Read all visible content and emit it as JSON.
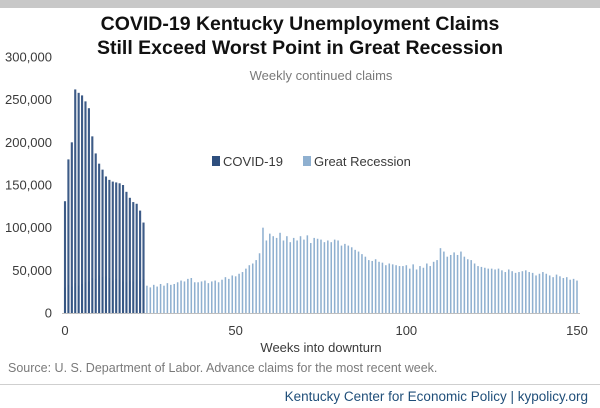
{
  "header": {
    "title_line1": "COVID-19 Kentucky Unemployment Claims",
    "title_line2": "Still Exceed Worst Point in Great Recession"
  },
  "source_note": "Source: U. S. Department of Labor. Advance claims for the most recent week.",
  "footer": {
    "credit": "Kentucky Center for Economic Policy | kypolicy.org"
  },
  "colors": {
    "covid": "#2e4f7e",
    "great_recession": "#8fb0d0",
    "axis": "#bfbfbf"
  },
  "chart_data": {
    "type": "bar",
    "title": "",
    "subtitle": "Weekly continued claims",
    "xlabel": "Weeks into downturn",
    "ylabel": "",
    "xlim": [
      0,
      150
    ],
    "ylim": [
      0,
      300000
    ],
    "x_ticks": [
      0,
      50,
      100,
      150
    ],
    "y_ticks": [
      0,
      50000,
      100000,
      150000,
      200000,
      250000,
      300000
    ],
    "y_tick_labels": [
      "0",
      "50,000",
      "100,000",
      "150,000",
      "200,000",
      "250,000",
      "300,000"
    ],
    "legend_position": "center",
    "series": [
      {
        "name": "COVID-19",
        "x": [
          0,
          1,
          2,
          3,
          4,
          5,
          6,
          7,
          8,
          9,
          10,
          11,
          12,
          13,
          14,
          15,
          16,
          17,
          18,
          19,
          20,
          21,
          22,
          23
        ],
        "values": [
          131000,
          180000,
          200000,
          262000,
          258000,
          255000,
          248000,
          240000,
          207000,
          187000,
          175000,
          168000,
          160000,
          156000,
          154000,
          153000,
          152000,
          150000,
          142000,
          135000,
          130000,
          128000,
          120000,
          106000
        ]
      },
      {
        "name": "Great Recession",
        "x": [
          0,
          1,
          2,
          3,
          4,
          5,
          6,
          7,
          8,
          9,
          10,
          11,
          12,
          13,
          14,
          15,
          16,
          17,
          18,
          19,
          20,
          21,
          22,
          23,
          24,
          25,
          26,
          27,
          28,
          29,
          30,
          31,
          32,
          33,
          34,
          35,
          36,
          37,
          38,
          39,
          40,
          41,
          42,
          43,
          44,
          45,
          46,
          47,
          48,
          49,
          50,
          51,
          52,
          53,
          54,
          55,
          56,
          57,
          58,
          59,
          60,
          61,
          62,
          63,
          64,
          65,
          66,
          67,
          68,
          69,
          70,
          71,
          72,
          73,
          74,
          75,
          76,
          77,
          78,
          79,
          80,
          81,
          82,
          83,
          84,
          85,
          86,
          87,
          88,
          89,
          90,
          91,
          92,
          93,
          94,
          95,
          96,
          97,
          98,
          99,
          100,
          101,
          102,
          103,
          104,
          105,
          106,
          107,
          108,
          109,
          110,
          111,
          112,
          113,
          114,
          115,
          116,
          117,
          118,
          119,
          120,
          121,
          122,
          123,
          124,
          125,
          126,
          127,
          128,
          129,
          130,
          131,
          132,
          133,
          134,
          135,
          136,
          137,
          138,
          139,
          140,
          141,
          142,
          143,
          144,
          145,
          146,
          147,
          148,
          149,
          150
        ],
        "values": [
          30000,
          33000,
          31000,
          35000,
          32000,
          34000,
          36000,
          37000,
          41000,
          40000,
          44000,
          42000,
          43000,
          41000,
          38000,
          40000,
          39000,
          37000,
          36000,
          38000,
          37000,
          39000,
          38000,
          40000,
          32000,
          30000,
          33000,
          31000,
          34000,
          32000,
          35000,
          33000,
          34000,
          36000,
          38000,
          37000,
          40000,
          41000,
          36000,
          36000,
          37000,
          38000,
          35000,
          37000,
          38000,
          36000,
          39000,
          42000,
          40000,
          44000,
          43000,
          46000,
          48000,
          52000,
          56000,
          58000,
          62000,
          70000,
          100000,
          85000,
          93000,
          90000,
          88000,
          94000,
          85000,
          90000,
          83000,
          88000,
          85000,
          90000,
          86000,
          91000,
          82000,
          88000,
          87000,
          86000,
          83000,
          85000,
          83000,
          86000,
          85000,
          79000,
          81000,
          79000,
          77000,
          74000,
          72000,
          69000,
          66000,
          62000,
          61000,
          63000,
          60000,
          59000,
          56000,
          58000,
          57000,
          56000,
          55000,
          55000,
          56000,
          52000,
          57000,
          51000,
          55000,
          53000,
          58000,
          55000,
          60000,
          62000,
          76000,
          72000,
          66000,
          68000,
          71000,
          68000,
          72000,
          66000,
          63000,
          62000,
          58000,
          55000,
          54000,
          53000,
          52000,
          52000,
          51000,
          52000,
          50000,
          48000,
          51000,
          49000,
          47000,
          48000,
          49000,
          50000,
          48000,
          47000,
          44000,
          46000,
          48000,
          46000,
          44000,
          42000,
          45000,
          43000,
          41000,
          42000,
          39000,
          40000,
          38000
        ]
      }
    ]
  }
}
